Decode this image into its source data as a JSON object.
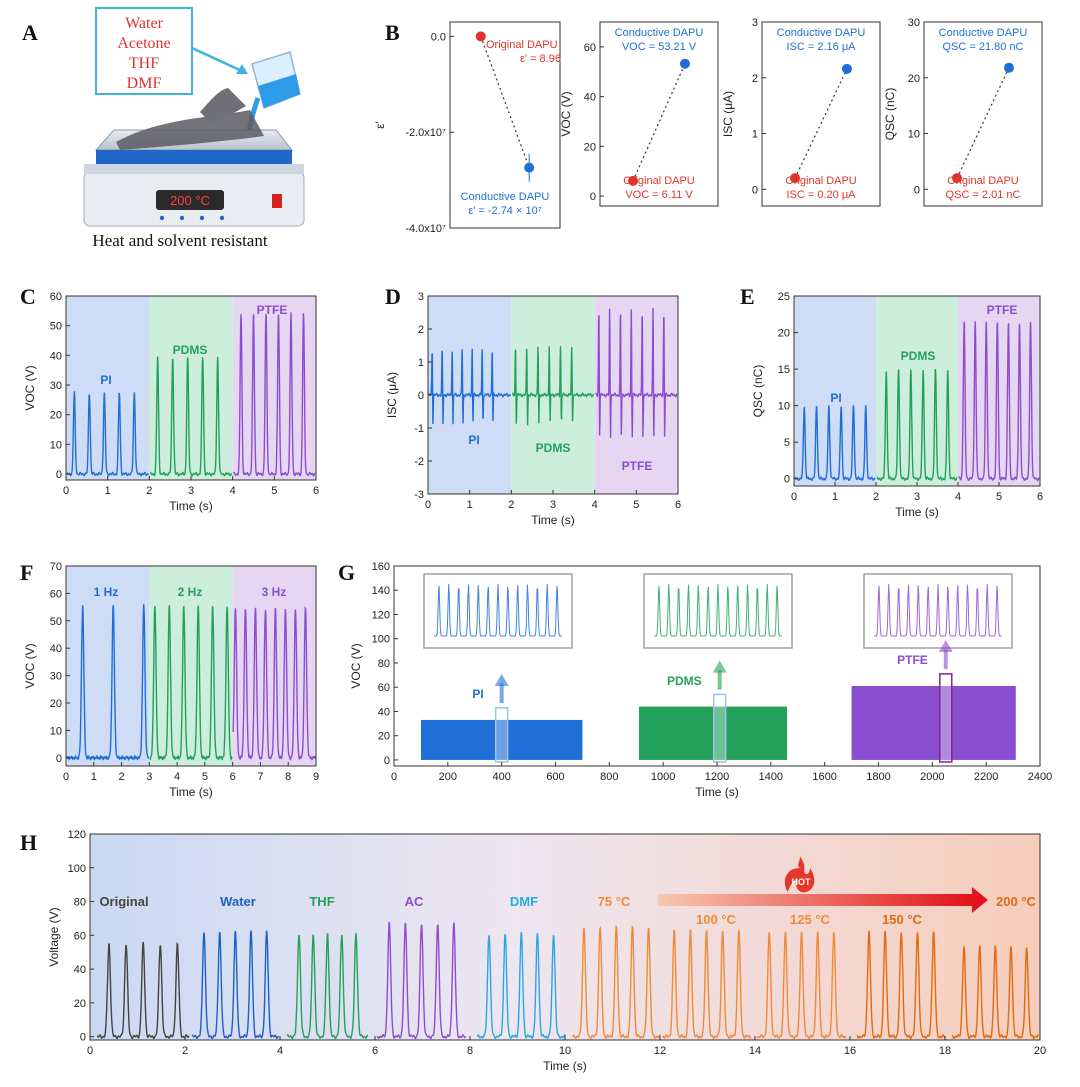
{
  "panels": {
    "A": {
      "letter": "A",
      "solvents": [
        "Water",
        "Acetone",
        "THF",
        "DMF"
      ],
      "display": "200 °C",
      "caption": "Heat and solvent resistant"
    },
    "B": {
      "letter": "B"
    },
    "C": {
      "letter": "C"
    },
    "D": {
      "letter": "D"
    },
    "E": {
      "letter": "E"
    },
    "F": {
      "letter": "F"
    },
    "G": {
      "letter": "G"
    },
    "H": {
      "letter": "H"
    }
  },
  "colors": {
    "blue": "#1f6fd6",
    "green": "#23a15a",
    "purple": "#8a4fd0",
    "red": "#e0342a",
    "dark": "#444444",
    "darkblue": "#1f5fc4",
    "cyan": "#2aa8e0",
    "orange": "#f08a3a",
    "darkorange": "#e26a10"
  },
  "chart_data": [
    {
      "id": "B1",
      "type": "scatter",
      "ylabel": "ε'",
      "yticks": [
        "0.0",
        "-2.0x10⁷",
        "-4.0x10⁷"
      ],
      "ylim": [
        -40000000.0,
        3000000.0
      ],
      "points": [
        {
          "label": "Original DAPU",
          "value": 8.96,
          "annotation": "ε' = 8.96"
        },
        {
          "label": "Conductive DAPU",
          "value": -27400000.0,
          "annotation": "ε' = -2.74 × 10⁷"
        }
      ]
    },
    {
      "id": "B2",
      "type": "scatter",
      "ylabel": "VOC (V)",
      "yticks": [
        "0",
        "20",
        "40",
        "60"
      ],
      "ylim": [
        -4,
        70
      ],
      "points": [
        {
          "label": "Original DAPU",
          "value": 6.11,
          "annotation": "VOC = 6.11 V"
        },
        {
          "label": "Conductive DAPU",
          "value": 53.21,
          "annotation": "VOC = 53.21 V"
        }
      ]
    },
    {
      "id": "B3",
      "type": "scatter",
      "ylabel": "ISC (μA)",
      "yticks": [
        "0",
        "1",
        "2",
        "3"
      ],
      "ylim": [
        -0.3,
        3
      ],
      "points": [
        {
          "label": "Original DAPU",
          "value": 0.2,
          "annotation": "ISC = 0.20 μA"
        },
        {
          "label": "Conductive DAPU",
          "value": 2.16,
          "annotation": "ISC = 2.16 μA"
        }
      ]
    },
    {
      "id": "B4",
      "type": "scatter",
      "ylabel": "QSC (nC)",
      "yticks": [
        "0",
        "10",
        "20",
        "30"
      ],
      "ylim": [
        -3,
        30
      ],
      "points": [
        {
          "label": "Original DAPU",
          "value": 2.01,
          "annotation": "QSC = 2.01 nC"
        },
        {
          "label": "Conductive DAPU",
          "value": 21.8,
          "annotation": "QSC = 21.80 nC"
        }
      ]
    },
    {
      "id": "C",
      "type": "line",
      "xlabel": "Time (s)",
      "ylabel": "VOC (V)",
      "xlim": [
        0,
        6
      ],
      "ylim": [
        -2,
        60
      ],
      "xticks": [
        "0",
        "1",
        "2",
        "3",
        "4",
        "5",
        "6"
      ],
      "yticks": [
        "0",
        "10",
        "20",
        "30",
        "40",
        "50",
        "60"
      ],
      "series": [
        {
          "name": "PI",
          "t0": 0.2,
          "period": 0.36,
          "count": 5,
          "peak": 27.5,
          "neg": 0,
          "region": [
            0,
            2
          ]
        },
        {
          "name": "PDMS",
          "t0": 2.2,
          "period": 0.36,
          "count": 5,
          "peak": 39.5,
          "neg": 0,
          "region": [
            2,
            4
          ]
        },
        {
          "name": "PTFE",
          "t0": 4.2,
          "period": 0.3,
          "count": 6,
          "peak": 54,
          "neg": 0,
          "region": [
            4,
            6
          ]
        }
      ]
    },
    {
      "id": "D",
      "type": "line",
      "xlabel": "Time (s)",
      "ylabel": "ISC (μA)",
      "xlim": [
        0,
        6
      ],
      "ylim": [
        -3,
        3
      ],
      "xticks": [
        "0",
        "1",
        "2",
        "3",
        "4",
        "5",
        "6"
      ],
      "yticks": [
        "-3",
        "-2",
        "-1",
        "0",
        "1",
        "2",
        "3"
      ],
      "series": [
        {
          "name": "PI",
          "t0": 0.1,
          "period": 0.24,
          "count": 7,
          "peak": 1.4,
          "neg": -1.0,
          "region": [
            0,
            2
          ]
        },
        {
          "name": "PDMS",
          "t0": 2.1,
          "period": 0.27,
          "count": 6,
          "peak": 1.5,
          "neg": -1.0,
          "region": [
            2,
            4
          ]
        },
        {
          "name": "PTFE",
          "t0": 4.1,
          "period": 0.26,
          "count": 7,
          "peak": 2.6,
          "neg": -1.5,
          "region": [
            4,
            6
          ]
        }
      ]
    },
    {
      "id": "E",
      "type": "line",
      "xlabel": "Time (s)",
      "ylabel": "QSC (nC)",
      "xlim": [
        0,
        6
      ],
      "ylim": [
        -1,
        25
      ],
      "xticks": [
        "0",
        "1",
        "2",
        "3",
        "4",
        "5",
        "6"
      ],
      "yticks": [
        "0",
        "5",
        "10",
        "15",
        "20",
        "25"
      ],
      "series": [
        {
          "name": "PI",
          "t0": 0.25,
          "period": 0.3,
          "count": 6,
          "peak": 10,
          "neg": 0,
          "region": [
            0,
            2
          ]
        },
        {
          "name": "PDMS",
          "t0": 2.25,
          "period": 0.3,
          "count": 6,
          "peak": 15,
          "neg": 0,
          "region": [
            2,
            4
          ]
        },
        {
          "name": "PTFE",
          "t0": 4.15,
          "period": 0.27,
          "count": 7,
          "peak": 21.5,
          "neg": 0,
          "region": [
            4,
            6
          ]
        }
      ]
    },
    {
      "id": "F",
      "type": "line",
      "xlabel": "Time (s)",
      "ylabel": "VOC (V)",
      "xlim": [
        0,
        9
      ],
      "ylim": [
        -3,
        70
      ],
      "xticks": [
        "0",
        "1",
        "2",
        "3",
        "4",
        "5",
        "6",
        "7",
        "8",
        "9"
      ],
      "yticks": [
        "0",
        "10",
        "20",
        "30",
        "40",
        "50",
        "60",
        "70"
      ],
      "series": [
        {
          "name": "1 Hz",
          "t0": 0.6,
          "period": 1.1,
          "count": 3,
          "peak": 55.5,
          "neg": 0,
          "region": [
            0,
            3
          ]
        },
        {
          "name": "2 Hz",
          "t0": 3.2,
          "period": 0.52,
          "count": 6,
          "peak": 55.5,
          "neg": 0,
          "region": [
            3,
            6
          ]
        },
        {
          "name": "3 Hz",
          "t0": 6.1,
          "period": 0.36,
          "count": 8,
          "peak": 54.5,
          "neg": 0,
          "region": [
            6,
            9
          ]
        }
      ]
    },
    {
      "id": "G",
      "type": "area",
      "xlabel": "Time (s)",
      "ylabel": "VOC (V)",
      "xlim": [
        0,
        2400
      ],
      "ylim": [
        -5,
        160
      ],
      "xticks": [
        "0",
        "200",
        "400",
        "600",
        "800",
        "1000",
        "1200",
        "1400",
        "1600",
        "1800",
        "2000",
        "2200",
        "2400"
      ],
      "yticks": [
        "0",
        "20",
        "40",
        "60",
        "80",
        "100",
        "120",
        "140",
        "160"
      ],
      "series": [
        {
          "name": "PI",
          "start": 100,
          "end": 700,
          "top": 33,
          "mark": 400
        },
        {
          "name": "PDMS",
          "start": 910,
          "end": 1460,
          "top": 44,
          "mark": 1210
        },
        {
          "name": "PTFE",
          "start": 1700,
          "end": 2310,
          "top": 61,
          "mark": 2050
        }
      ]
    },
    {
      "id": "H",
      "type": "line",
      "xlabel": "Time (s)",
      "ylabel": "Voltage (V)",
      "xlim": [
        0,
        20
      ],
      "ylim": [
        -2,
        120
      ],
      "xticks": [
        "0",
        "2",
        "4",
        "6",
        "8",
        "10",
        "12",
        "14",
        "16",
        "18",
        "20"
      ],
      "yticks": [
        "0",
        "20",
        "40",
        "60",
        "80",
        "100",
        "120"
      ],
      "series": [
        {
          "name": "Original",
          "t0": 0.4,
          "period": 0.36,
          "count": 5,
          "peak": 55,
          "color": "dark"
        },
        {
          "name": "Water",
          "t0": 2.4,
          "period": 0.33,
          "count": 5,
          "peak": 62,
          "color": "darkblue"
        },
        {
          "name": "THF",
          "t0": 4.4,
          "period": 0.3,
          "count": 5,
          "peak": 61,
          "color": "green"
        },
        {
          "name": "AC",
          "t0": 6.3,
          "period": 0.34,
          "count": 5,
          "peak": 67,
          "color": "purple"
        },
        {
          "name": "DMF",
          "t0": 8.4,
          "period": 0.34,
          "count": 5,
          "peak": 61,
          "color": "cyan"
        },
        {
          "name": "75 °C",
          "t0": 10.4,
          "period": 0.34,
          "count": 5,
          "peak": 65,
          "color": "orange"
        },
        {
          "name": "100 °C",
          "t0": 12.3,
          "period": 0.34,
          "count": 5,
          "peak": 63,
          "color": "orange"
        },
        {
          "name": "125 °C",
          "t0": 14.3,
          "period": 0.34,
          "count": 5,
          "peak": 62,
          "color": "orange"
        },
        {
          "name": "150 °C",
          "t0": 16.4,
          "period": 0.34,
          "count": 5,
          "peak": 62,
          "color": "darkorange"
        },
        {
          "name": "200 °C",
          "t0": 18.4,
          "period": 0.33,
          "count": 5,
          "peak": 53,
          "color": "darkorange"
        }
      ],
      "arrow_label": "HOT"
    }
  ]
}
